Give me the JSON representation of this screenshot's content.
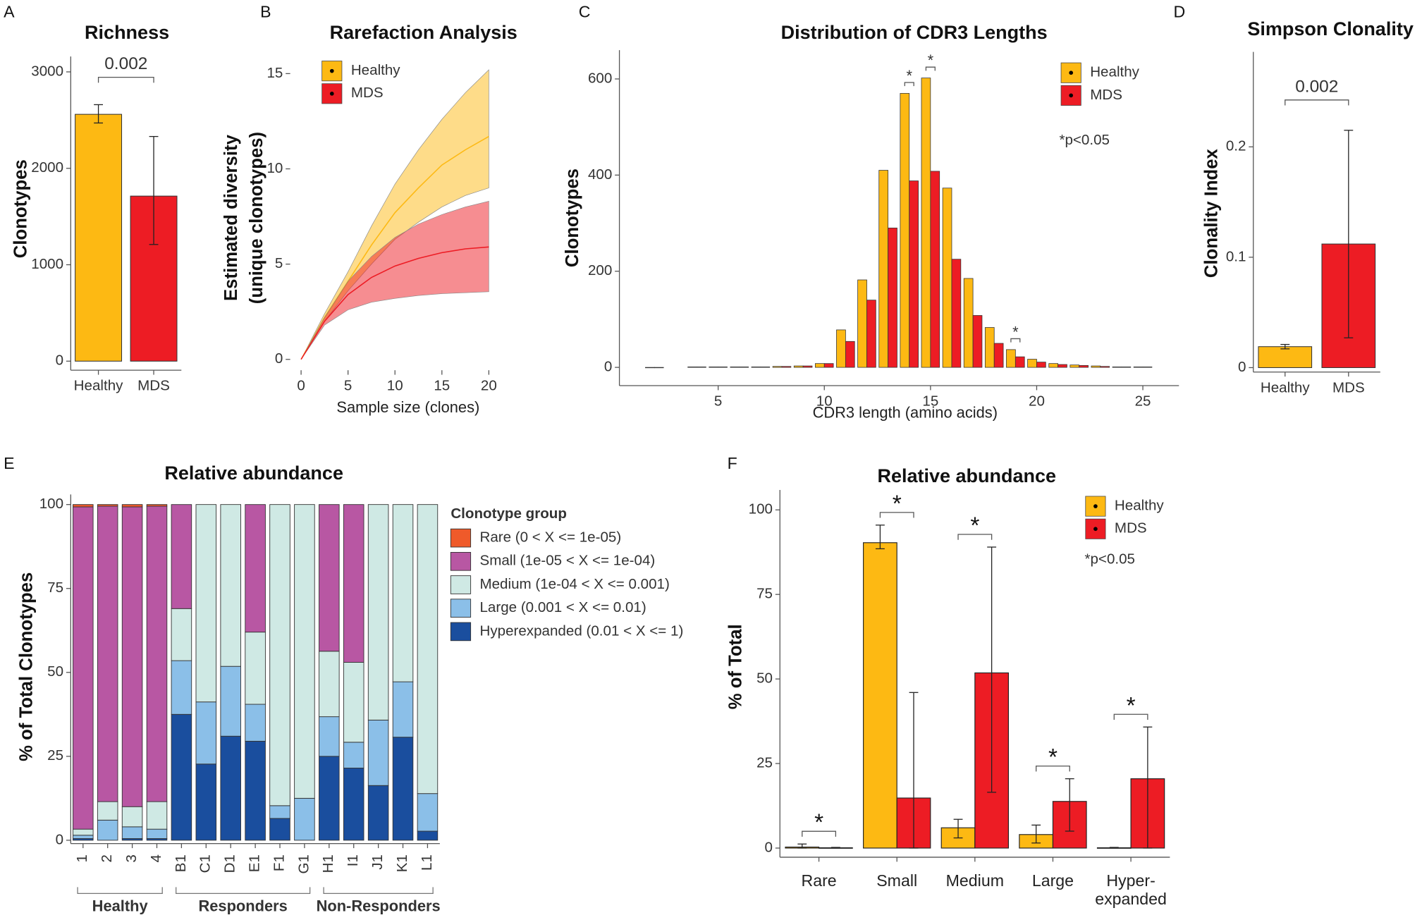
{
  "chart_data": [
    {
      "label": "A",
      "type": "bar",
      "title": "Richness",
      "ylabel": "Clonotypes",
      "categories": [
        "Healthy",
        "MDS"
      ],
      "values": [
        2560,
        1712
      ],
      "colors": [
        "#fdb913",
        "#ed1c24"
      ],
      "errors": [
        [
          2470,
          2660
        ],
        [
          1210,
          2330
        ]
      ],
      "ylim": [
        -94,
        3160
      ],
      "yticks": [
        0,
        1000,
        2000,
        3000
      ],
      "annotation": "0.002"
    },
    {
      "label": "B",
      "type": "line",
      "title": "Rarefaction Analysis",
      "xlabel": "Sample size (clones)",
      "ylabel": [
        "Estimated diversity",
        "(unique clonotypes)"
      ],
      "x": [
        0,
        2.5,
        5,
        7.5,
        10,
        12.5,
        15,
        17.5,
        20
      ],
      "series": [
        {
          "name": "Healthy",
          "color": "#fdb913",
          "values": [
            0,
            2.2,
            4.1,
            6.0,
            7.7,
            9.0,
            10.2,
            11.0,
            11.7
          ],
          "lower": [
            0,
            2.0,
            3.6,
            5.0,
            6.3,
            7.2,
            8.0,
            8.6,
            9.0
          ],
          "upper": [
            0,
            2.4,
            4.6,
            7.0,
            9.2,
            11.0,
            12.6,
            14.0,
            15.2
          ]
        },
        {
          "name": "MDS",
          "color": "#ed1c24",
          "values": [
            0,
            2.0,
            3.4,
            4.3,
            4.9,
            5.3,
            5.6,
            5.8,
            5.9
          ],
          "lower": [
            0,
            1.8,
            2.6,
            3.0,
            3.2,
            3.35,
            3.45,
            3.5,
            3.55
          ],
          "upper": [
            0,
            2.2,
            4.1,
            5.4,
            6.4,
            7.1,
            7.6,
            8.0,
            8.3
          ]
        }
      ],
      "xlim": [
        -1.16,
        21.06
      ],
      "xticks": [
        0,
        5,
        10,
        15,
        20
      ],
      "ylim": [
        -0.57,
        15.9
      ],
      "yticks": [
        0,
        5,
        10,
        15
      ],
      "legend": "top-left"
    },
    {
      "label": "C",
      "type": "grouped_bar",
      "title": "Distribution of CDR3 Lengths",
      "xlabel": "CDR3 length (amino acids)",
      "ylabel": "Clonotypes",
      "x": [
        2,
        4,
        5,
        6,
        7,
        8,
        9,
        10,
        11,
        12,
        13,
        14,
        15,
        16,
        17,
        18,
        19,
        20,
        21,
        22,
        23,
        24,
        25
      ],
      "series": [
        {
          "name": "Healthy",
          "color": "#fdb913",
          "values": [
            0,
            1,
            1,
            1,
            1,
            2,
            3,
            8,
            78,
            182,
            410,
            570,
            602,
            373,
            185,
            83,
            37,
            17,
            8,
            5,
            3,
            1,
            1
          ]
        },
        {
          "name": "MDS",
          "color": "#ed1c24",
          "values": [
            0,
            1,
            1,
            1,
            1,
            2,
            3,
            8,
            54,
            140,
            290,
            388,
            408,
            225,
            108,
            50,
            22,
            11,
            6,
            4,
            2,
            1,
            1
          ]
        }
      ],
      "xlim": [
        0.35,
        26.7
      ],
      "xticks": [
        5,
        10,
        15,
        20,
        25
      ],
      "ylim": [
        -38,
        660
      ],
      "yticks": [
        0,
        200,
        400,
        600
      ],
      "marker": "*",
      "significant_x": [
        14,
        15,
        19
      ],
      "note": "*p<0.05",
      "legend": "top-right"
    },
    {
      "label": "D",
      "type": "bar",
      "title": "Simpson Clonality",
      "ylabel": "Clonality Index",
      "categories": [
        "Healthy",
        "MDS"
      ],
      "values": [
        0.019,
        0.112
      ],
      "colors": [
        "#fdb913",
        "#ed1c24"
      ],
      "errors": [
        [
          0.017,
          0.021
        ],
        [
          0.027,
          0.215
        ]
      ],
      "ylim": [
        -0.004,
        0.286
      ],
      "yticks": [
        0,
        0.1,
        0.2
      ],
      "annotation": "0.002"
    },
    {
      "label": "E",
      "type": "stacked_bar",
      "title": "Relative abundance",
      "ylabel": "% of Total Clonotypes",
      "groups": [
        {
          "name": "Healthy",
          "categories": [
            "1",
            "2",
            "3",
            "4"
          ]
        },
        {
          "name": "Responders",
          "categories": [
            "B1",
            "C1",
            "D1",
            "E1",
            "F1",
            "G1"
          ]
        },
        {
          "name": "Non-Responders",
          "categories": [
            "H1",
            "I1",
            "J1",
            "K1",
            "L1"
          ]
        }
      ],
      "legend_title": "Clonotype group",
      "series": [
        {
          "name": "Rare (0 < X <= 1e-05)",
          "color": "#ef5a2a",
          "values": [
            0.7,
            0.5,
            0.7,
            0.5,
            0,
            0,
            0,
            0,
            0,
            0,
            0,
            0,
            0,
            0,
            0
          ]
        },
        {
          "name": "Small (1e-05 < X <= 1e-04)",
          "color": "#b857a3",
          "values": [
            96.0,
            88.0,
            89.3,
            88.0,
            31.0,
            0,
            0,
            38.0,
            0,
            0,
            43.7,
            47.0,
            0,
            0,
            0
          ]
        },
        {
          "name": "Medium (1e-04 < X <= 0.001)",
          "color": "#cfe9e4",
          "values": [
            1.8,
            5.5,
            6.0,
            8.2,
            15.5,
            58.8,
            48.2,
            21.5,
            89.7,
            87.5,
            19.5,
            23.8,
            64.2,
            52.8,
            86.1
          ]
        },
        {
          "name": "Large (0.001 < X <= 0.01)",
          "color": "#8bbfe8",
          "values": [
            1.0,
            6.0,
            3.5,
            2.8,
            16.0,
            18.5,
            20.8,
            11.0,
            3.8,
            12.5,
            11.8,
            7.7,
            19.5,
            16.5,
            11.2
          ]
        },
        {
          "name": "Hyperexpanded (0.01 < X <= 1)",
          "color": "#1a4e9e",
          "values": [
            0.5,
            0,
            0.5,
            0.5,
            37.5,
            22.7,
            31.0,
            29.5,
            6.5,
            0,
            25.0,
            21.5,
            16.3,
            30.7,
            2.7
          ]
        }
      ],
      "ylim": [
        -1,
        103
      ],
      "yticks": [
        0,
        25,
        50,
        75,
        100
      ],
      "legend": "right"
    },
    {
      "label": "F",
      "type": "grouped_bar_errors",
      "title": "Relative abundance",
      "ylabel": "% of Total",
      "categories": [
        "Rare",
        "Small",
        "Medium",
        "Large",
        "Hyper-\nexpanded"
      ],
      "series": [
        {
          "name": "Healthy",
          "color": "#fdb913",
          "values": [
            0.3,
            90.3,
            6.0,
            4.0,
            0.1
          ],
          "errors": [
            [
              0,
              1.2
            ],
            [
              88.5,
              95.5
            ],
            [
              3,
              8.5
            ],
            [
              1.5,
              6.8
            ],
            [
              0,
              0.2
            ]
          ]
        },
        {
          "name": "MDS",
          "color": "#ed1c24",
          "values": [
            0.1,
            14.8,
            51.8,
            13.8,
            20.5
          ],
          "errors": [
            [
              0,
              0.2
            ],
            [
              0,
              46
            ],
            [
              16.5,
              89
            ],
            [
              5,
              20.5
            ],
            [
              0,
              35.8
            ]
          ]
        }
      ],
      "ylim": [
        -2.7,
        105.9
      ],
      "yticks": [
        0,
        25,
        50,
        75,
        100
      ],
      "marker": "*",
      "note": "*p<0.05",
      "legend": "top-right"
    }
  ]
}
